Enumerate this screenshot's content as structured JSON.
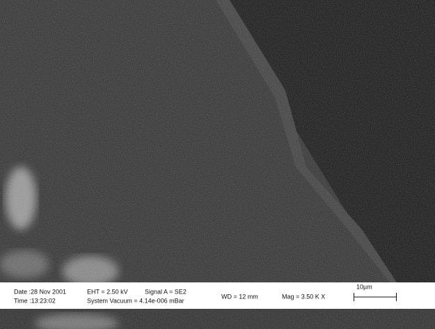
{
  "info_bar": {
    "date": "Date :28 Nov 2001",
    "time": "Time :13:23:02",
    "eht": "EHT = 2.50 kV",
    "vacuum": "System Vacuum = 4.14e-006 mBar",
    "signal": "Signal A = SE2",
    "wd": "WD = 12 mm",
    "mag": "Mag = 3.50 K X",
    "scale_bar": "10µm"
  }
}
